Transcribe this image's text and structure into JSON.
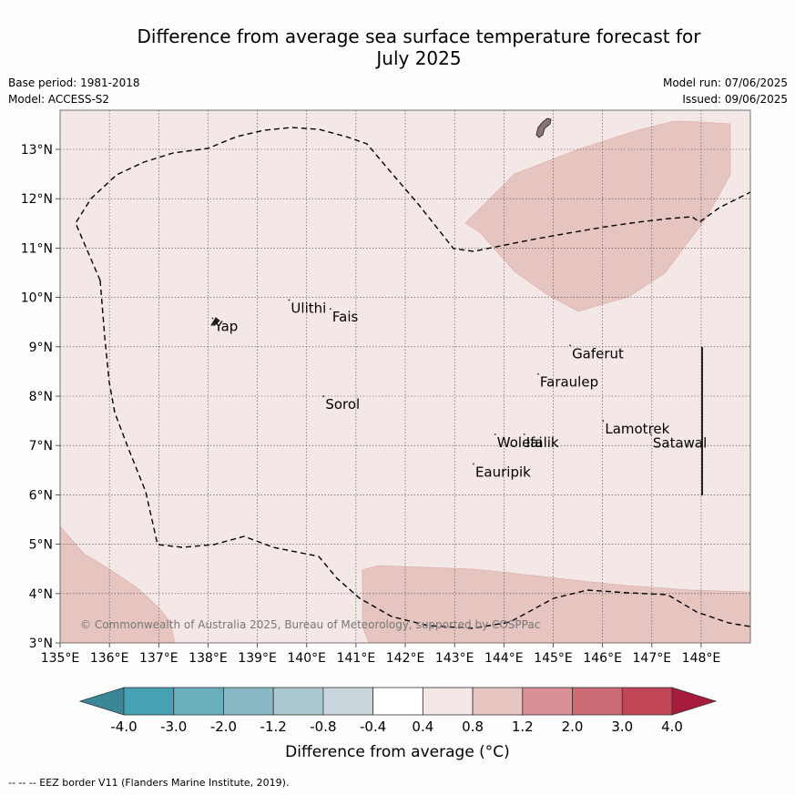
{
  "title_line1": "Difference from average sea surface temperature forecast for",
  "title_line2": "July 2025",
  "base_period": "Base period: 1981-2018",
  "model": "Model: ACCESS-S2",
  "model_run": "Model run: 07/06/2025",
  "issued": "Issued: 09/06/2025",
  "x_ticks": [
    "135°E",
    "136°E",
    "137°E",
    "138°E",
    "139°E",
    "140°E",
    "141°E",
    "142°E",
    "143°E",
    "144°E",
    "145°E",
    "146°E",
    "147°E",
    "148°E"
  ],
  "y_ticks": [
    "3°N",
    "4°N",
    "5°N",
    "6°N",
    "7°N",
    "8°N",
    "9°N",
    "10°N",
    "11°N",
    "12°N",
    "13°N"
  ],
  "places": [
    {
      "name": "Ulithi",
      "lon": 139.68,
      "lat": 9.8
    },
    {
      "name": "Fais",
      "lon": 140.52,
      "lat": 9.62
    },
    {
      "name": "Yap",
      "lon": 138.13,
      "lat": 9.43
    },
    {
      "name": "Gaferut",
      "lon": 145.38,
      "lat": 8.88
    },
    {
      "name": "Faraulep",
      "lon": 144.73,
      "lat": 8.3
    },
    {
      "name": "Sorol",
      "lon": 140.38,
      "lat": 7.85
    },
    {
      "name": "Woleai",
      "lon": 143.86,
      "lat": 7.08
    },
    {
      "name": "Ifalik",
      "lon": 144.45,
      "lat": 7.08
    },
    {
      "name": "Lamotrek",
      "lon": 146.05,
      "lat": 7.35
    },
    {
      "name": "Satawal",
      "lon": 147.02,
      "lat": 7.07
    },
    {
      "name": "Eauripik",
      "lon": 143.42,
      "lat": 6.48
    }
  ],
  "copyright": "© Commonwealth of Australia 2025, Bureau of Meteorology, supported by COSPPac",
  "colorbar": {
    "ticks": [
      "-4.0",
      "-3.0",
      "-2.0",
      "-1.2",
      "-0.8",
      "-0.4",
      "0.4",
      "0.8",
      "1.2",
      "2.0",
      "3.0",
      "4.0"
    ],
    "colors": [
      "#3a8897",
      "#47a1b4",
      "#6aaebd",
      "#89b7c4",
      "#aac8d0",
      "#c9d6dc",
      "#ffffff",
      "#f4e8e7",
      "#e6c5c1",
      "#d88f95",
      "#cd6b74",
      "#c04555",
      "#a61a3c"
    ],
    "label": "Difference from average (°C)"
  },
  "map_colors": {
    "background": "#f4e8e7",
    "anomaly": "#e6c5c1",
    "land": "#8a7575"
  },
  "footer": "--  --  -- EEZ border V11 (Flanders Marine Institute, 2019)."
}
